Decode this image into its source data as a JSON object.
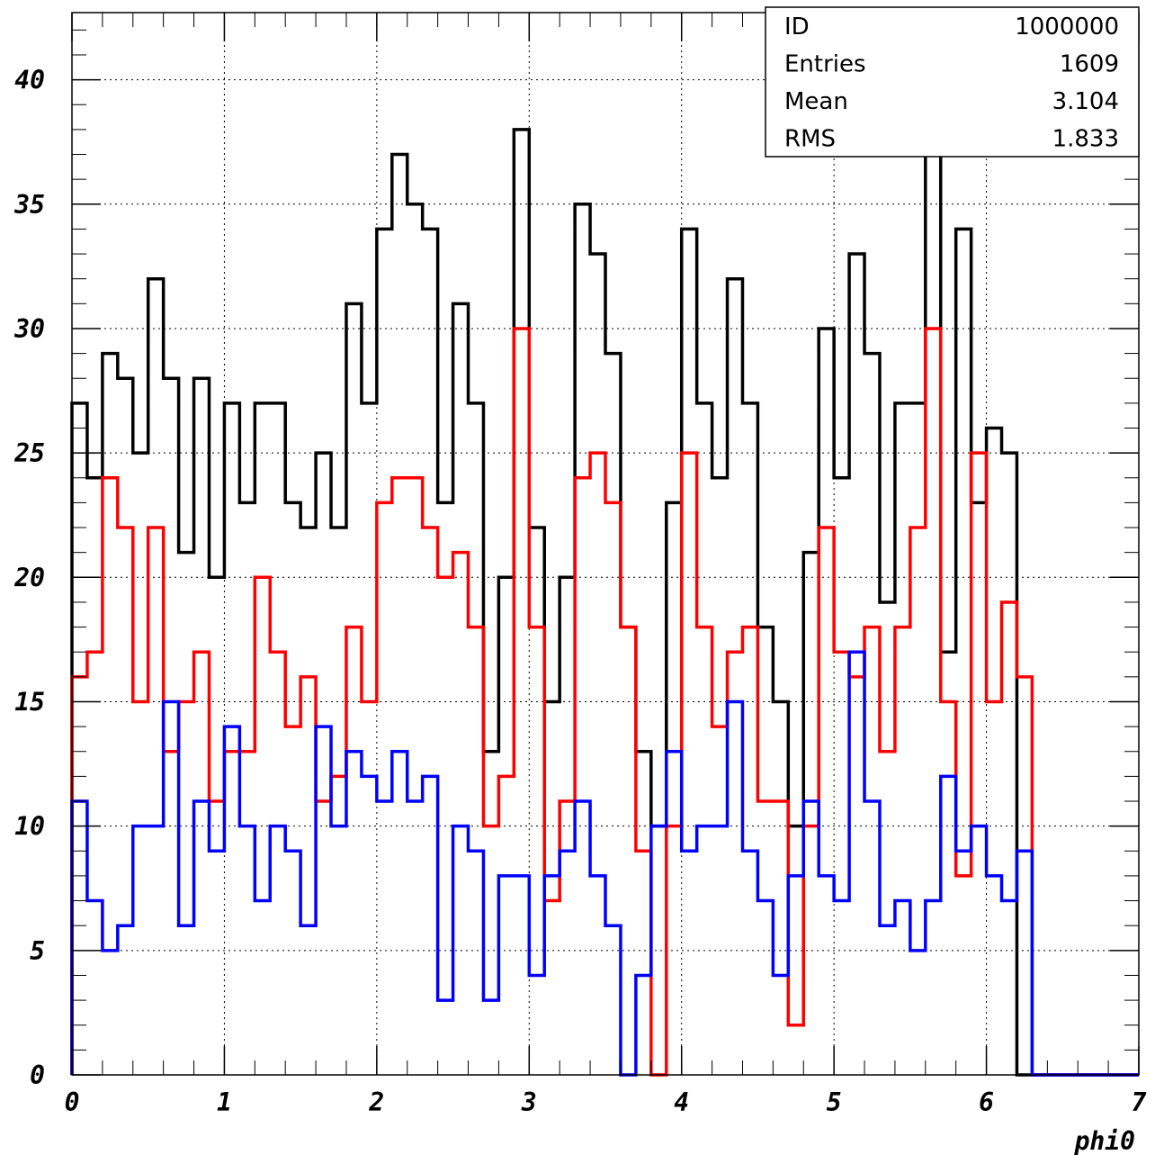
{
  "chart_data": {
    "type": "histogram",
    "xlabel": "phi0",
    "ylabel": "",
    "xlim": [
      0,
      7
    ],
    "ylim": [
      0,
      42.7
    ],
    "x_ticks": [
      "0",
      "1",
      "2",
      "3",
      "4",
      "5",
      "6",
      "7"
    ],
    "y_ticks": [
      "0",
      "5",
      "10",
      "15",
      "20",
      "25",
      "30",
      "35",
      "40"
    ],
    "grid": true,
    "bin_width": 0.1,
    "x_start": 0,
    "series": [
      {
        "color": "#000000",
        "values": [
          27,
          24,
          29,
          28,
          25,
          32,
          28,
          21,
          28,
          20,
          27,
          23,
          27,
          27,
          23,
          22,
          25,
          22,
          31,
          27,
          34,
          37,
          35,
          34,
          23,
          31,
          27,
          13,
          20,
          38,
          22,
          15,
          20,
          35,
          33,
          29,
          18,
          13,
          10,
          23,
          34,
          27,
          24,
          32,
          27,
          18,
          15,
          10,
          21,
          30,
          24,
          33,
          29,
          19,
          27,
          27,
          37,
          17,
          34,
          23,
          26,
          25,
          0,
          0,
          0,
          0,
          0,
          0,
          0,
          0
        ]
      },
      {
        "color": "#ff0000",
        "values": [
          16,
          17,
          24,
          22,
          15,
          22,
          13,
          15,
          17,
          11,
          13,
          13,
          20,
          17,
          14,
          16,
          11,
          12,
          18,
          15,
          23,
          24,
          24,
          22,
          20,
          21,
          18,
          10,
          12,
          30,
          18,
          7,
          11,
          24,
          25,
          23,
          18,
          9,
          0,
          10,
          25,
          18,
          14,
          17,
          18,
          11,
          11,
          2,
          10,
          22,
          17,
          16,
          18,
          13,
          18,
          22,
          30,
          15,
          8,
          25,
          15,
          19,
          16,
          0,
          0,
          0,
          0,
          0,
          0,
          0
        ]
      },
      {
        "color": "#0000ff",
        "values": [
          11,
          7,
          5,
          6,
          10,
          10,
          15,
          6,
          11,
          9,
          14,
          10,
          7,
          10,
          9,
          6,
          14,
          10,
          13,
          12,
          11,
          13,
          11,
          12,
          3,
          10,
          9,
          3,
          8,
          8,
          4,
          8,
          9,
          11,
          8,
          6,
          0,
          4,
          10,
          13,
          9,
          10,
          10,
          15,
          9,
          7,
          4,
          8,
          11,
          8,
          7,
          17,
          11,
          6,
          7,
          5,
          7,
          12,
          9,
          10,
          8,
          7,
          9,
          0,
          0,
          0,
          0,
          0,
          0,
          0
        ]
      }
    ],
    "stats_box": {
      "rows": [
        {
          "label": "ID",
          "value": "1000000"
        },
        {
          "label": "Entries",
          "value": "1609"
        },
        {
          "label": "Mean",
          "value": "3.104"
        },
        {
          "label": "RMS",
          "value": "1.833"
        }
      ]
    }
  }
}
